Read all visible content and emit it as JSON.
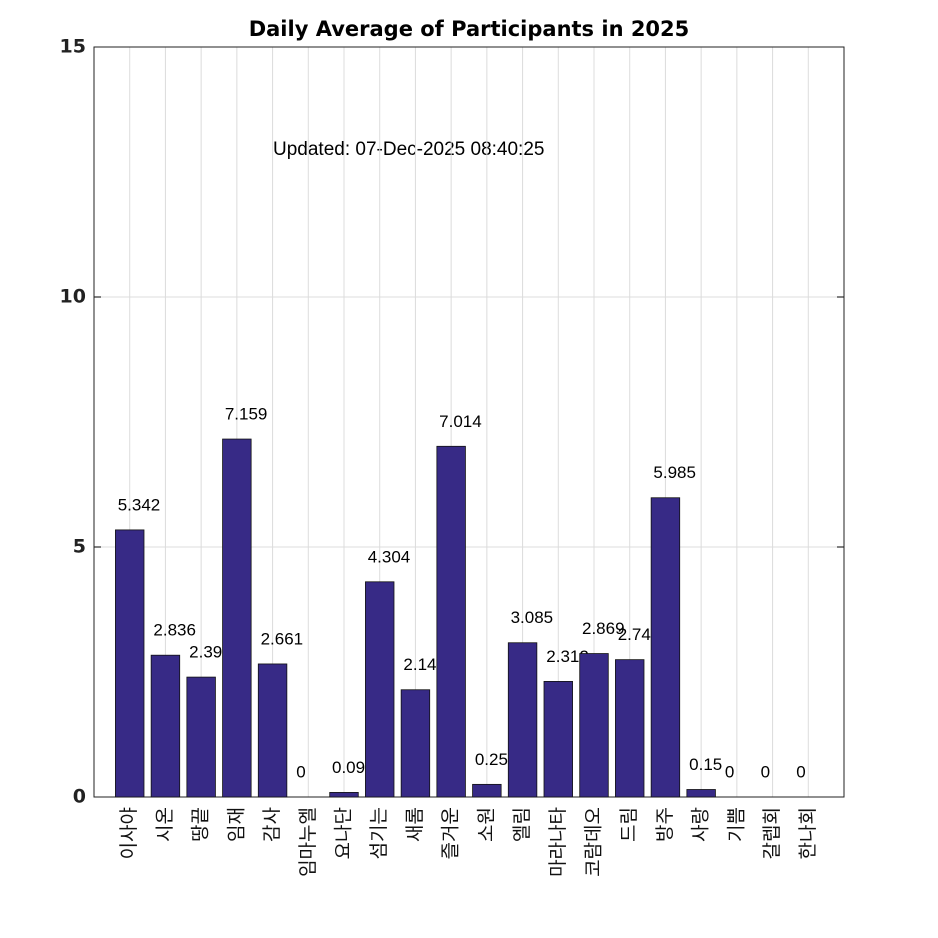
{
  "chart_data": {
    "type": "bar",
    "title": "Daily Average of Participants in 2025",
    "annotation": "Updated: 07-Dec-2025 08:40:25",
    "categories": [
      "이사야",
      "시온",
      "땅끝",
      "임재",
      "감사",
      "임마누엘",
      "요나단",
      "섬기는",
      "새롬",
      "즐거운",
      "소원",
      "엘림",
      "마라나타",
      "코람데오",
      "드림",
      "방주",
      "사랑",
      "기쁨",
      "갈렙회",
      "한나회"
    ],
    "values": [
      5.342,
      2.836,
      2.398,
      7.159,
      2.661,
      0,
      0.09167,
      4.304,
      2.145,
      7.014,
      0.2528,
      3.085,
      2.312,
      2.869,
      2.747,
      5.985,
      0.15,
      0,
      0,
      0
    ],
    "color": "#372a86",
    "ylim": [
      0,
      15
    ],
    "yticks": [
      0,
      5,
      10,
      15
    ],
    "grid": true
  }
}
